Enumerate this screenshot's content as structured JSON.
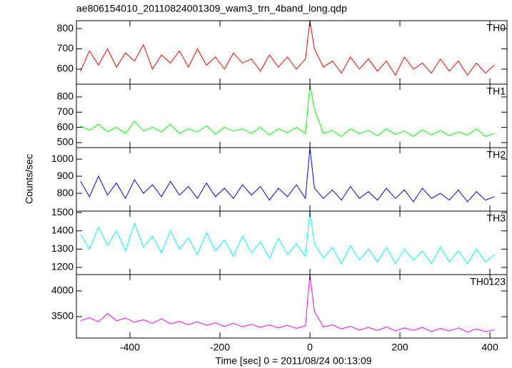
{
  "title": "ae806154010_20110824001309_wam3_trn_4band_long.qdp",
  "x_label": "Time [sec] 0 = 2011/08/24 00:13:09",
  "y_label": "Counts/sec",
  "chart_data": [
    {
      "type": "line",
      "x": [
        -510,
        -490,
        -470,
        -450,
        -430,
        -410,
        -390,
        -370,
        -350,
        -330,
        -310,
        -290,
        -270,
        -250,
        -230,
        -210,
        -190,
        -170,
        -150,
        -130,
        -110,
        -90,
        -70,
        -50,
        -30,
        -10,
        0,
        10,
        30,
        50,
        70,
        90,
        110,
        130,
        150,
        170,
        190,
        210,
        230,
        250,
        270,
        290,
        310,
        330,
        350,
        370,
        390,
        410
      ],
      "xlim": [
        -519,
        438
      ],
      "xticks": [
        -400,
        -200,
        0,
        200,
        400
      ],
      "ylim": [
        526,
        839
      ],
      "yticks": [
        600,
        700,
        800
      ],
      "series": [
        {
          "name": "TH0",
          "color": "#ff0000",
          "values": [
            590,
            690,
            620,
            700,
            610,
            680,
            640,
            720,
            600,
            670,
            630,
            690,
            610,
            700,
            620,
            660,
            600,
            680,
            630,
            650,
            590,
            670,
            610,
            660,
            600,
            650,
            839,
            700,
            610,
            640,
            580,
            660,
            600,
            650,
            590,
            640,
            570,
            660,
            600,
            630,
            580,
            650,
            590,
            640,
            570,
            630,
            580,
            620
          ]
        }
      ]
    },
    {
      "type": "line",
      "x": [
        -510,
        -490,
        -470,
        -450,
        -430,
        -410,
        -390,
        -370,
        -350,
        -330,
        -310,
        -290,
        -270,
        -250,
        -230,
        -210,
        -190,
        -170,
        -150,
        -130,
        -110,
        -90,
        -70,
        -50,
        -30,
        -10,
        0,
        10,
        30,
        50,
        70,
        90,
        110,
        130,
        150,
        170,
        190,
        210,
        230,
        250,
        270,
        290,
        310,
        330,
        350,
        370,
        390,
        410
      ],
      "xlim": [
        -519,
        438
      ],
      "xticks": [
        -400,
        -200,
        0,
        200,
        400
      ],
      "ylim": [
        467,
        884
      ],
      "yticks": [
        500,
        600,
        700,
        800
      ],
      "series": [
        {
          "name": "TH1",
          "color": "#00ff00",
          "values": [
            610,
            580,
            620,
            570,
            600,
            560,
            640,
            575,
            600,
            570,
            620,
            560,
            590,
            570,
            610,
            555,
            600,
            575,
            590,
            560,
            600,
            550,
            590,
            565,
            600,
            560,
            880,
            720,
            560,
            580,
            540,
            590,
            560,
            580,
            545,
            590,
            555,
            575,
            540,
            585,
            550,
            580,
            545,
            570,
            550,
            590,
            540,
            560
          ]
        }
      ]
    },
    {
      "type": "line",
      "x": [
        -510,
        -490,
        -470,
        -450,
        -430,
        -410,
        -390,
        -370,
        -350,
        -330,
        -310,
        -290,
        -270,
        -250,
        -230,
        -210,
        -190,
        -170,
        -150,
        -130,
        -110,
        -90,
        -70,
        -50,
        -30,
        -10,
        0,
        10,
        30,
        50,
        70,
        90,
        110,
        130,
        150,
        170,
        190,
        210,
        230,
        250,
        270,
        290,
        310,
        330,
        350,
        370,
        390,
        410
      ],
      "xlim": [
        -519,
        438
      ],
      "xticks": [
        -400,
        -200,
        0,
        200,
        400
      ],
      "ylim": [
        696,
        1067
      ],
      "yticks": [
        800,
        900,
        1000
      ],
      "series": [
        {
          "name": "TH2",
          "color": "#0000ff",
          "values": [
            870,
            780,
            900,
            790,
            860,
            770,
            880,
            800,
            850,
            780,
            870,
            790,
            840,
            770,
            860,
            780,
            830,
            770,
            850,
            790,
            840,
            760,
            830,
            780,
            850,
            770,
            1067,
            830,
            770,
            820,
            760,
            840,
            770,
            810,
            760,
            830,
            770,
            820,
            750,
            830,
            770,
            800,
            760,
            820,
            750,
            810,
            760,
            780
          ]
        }
      ]
    },
    {
      "type": "line",
      "x": [
        -510,
        -490,
        -470,
        -450,
        -430,
        -410,
        -390,
        -370,
        -350,
        -330,
        -310,
        -290,
        -270,
        -250,
        -230,
        -210,
        -190,
        -170,
        -150,
        -130,
        -110,
        -90,
        -70,
        -50,
        -30,
        -10,
        0,
        10,
        30,
        50,
        70,
        90,
        110,
        130,
        150,
        170,
        190,
        210,
        230,
        250,
        270,
        290,
        310,
        330,
        350,
        370,
        390,
        410
      ],
      "xlim": [
        -519,
        438
      ],
      "xticks": [
        -400,
        -200,
        0,
        200,
        400
      ],
      "ylim": [
        1161,
        1508
      ],
      "yticks": [
        1200,
        1300,
        1400,
        1500
      ],
      "series": [
        {
          "name": "TH3",
          "color": "#00ffff",
          "values": [
            1380,
            1300,
            1420,
            1320,
            1400,
            1290,
            1440,
            1310,
            1370,
            1280,
            1400,
            1300,
            1360,
            1270,
            1390,
            1290,
            1350,
            1260,
            1370,
            1280,
            1340,
            1250,
            1360,
            1270,
            1330,
            1260,
            1508,
            1330,
            1250,
            1310,
            1220,
            1320,
            1240,
            1300,
            1230,
            1310,
            1220,
            1300,
            1240,
            1290,
            1220,
            1310,
            1230,
            1290,
            1220,
            1300,
            1230,
            1270
          ]
        }
      ]
    },
    {
      "type": "line",
      "x": [
        -510,
        -490,
        -470,
        -450,
        -430,
        -410,
        -390,
        -370,
        -350,
        -330,
        -310,
        -290,
        -270,
        -250,
        -230,
        -210,
        -190,
        -170,
        -150,
        -130,
        -110,
        -90,
        -70,
        -50,
        -30,
        -10,
        0,
        10,
        30,
        50,
        70,
        90,
        110,
        130,
        150,
        170,
        190,
        210,
        230,
        250,
        270,
        290,
        310,
        330,
        350,
        370,
        390,
        410
      ],
      "xlim": [
        -519,
        438
      ],
      "xticks": [
        -400,
        -200,
        0,
        200,
        400
      ],
      "ylim": [
        3083,
        4319
      ],
      "yticks": [
        3500,
        4000
      ],
      "series": [
        {
          "name": "TH0123",
          "color": "#ff00ff",
          "values": [
            3420,
            3480,
            3400,
            3560,
            3420,
            3470,
            3390,
            3440,
            3370,
            3460,
            3360,
            3410,
            3340,
            3400,
            3330,
            3380,
            3310,
            3370,
            3300,
            3350,
            3290,
            3340,
            3280,
            3330,
            3270,
            3320,
            4319,
            3600,
            3300,
            3340,
            3260,
            3310,
            3240,
            3290,
            3230,
            3300,
            3220,
            3280,
            3230,
            3290,
            3210,
            3270,
            3220,
            3280,
            3200,
            3260,
            3210,
            3240
          ]
        }
      ]
    }
  ]
}
